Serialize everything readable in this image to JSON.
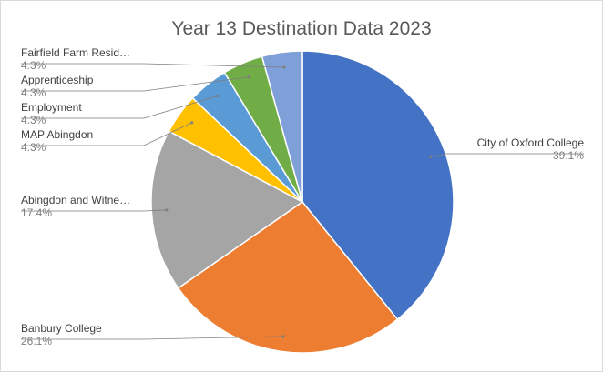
{
  "chart_data": {
    "type": "pie",
    "title": "Year 13 Destination Data 2023",
    "slices": [
      {
        "name": "City of Oxford College",
        "label": "City of Oxford College",
        "value": 39.1,
        "pct_label": "39.1%",
        "color": "#4472C4"
      },
      {
        "name": "Banbury College",
        "label": "Banbury College",
        "value": 26.1,
        "pct_label": "26.1%",
        "color": "#ED7D31"
      },
      {
        "name": "Abingdon and Witney College",
        "label": "Abingdon and Witne…",
        "value": 17.4,
        "pct_label": "17.4%",
        "color": "#A5A5A5"
      },
      {
        "name": "MAP Abingdon",
        "label": "MAP Abingdon",
        "value": 4.3,
        "pct_label": "4.3%",
        "color": "#FFC000"
      },
      {
        "name": "Employment",
        "label": "Employment",
        "value": 4.3,
        "pct_label": "4.3%",
        "color": "#5B9BD5"
      },
      {
        "name": "Apprenticeship",
        "label": "Apprenticeship",
        "value": 4.3,
        "pct_label": "4.3%",
        "color": "#70AD47"
      },
      {
        "name": "Fairfield Farm Residential",
        "label": "Fairfield Farm Resid…",
        "value": 4.3,
        "pct_label": "4.3%",
        "color": "#7F9FD8"
      }
    ],
    "start_angle_deg": 0,
    "direction": "clockwise",
    "legend": "none"
  }
}
